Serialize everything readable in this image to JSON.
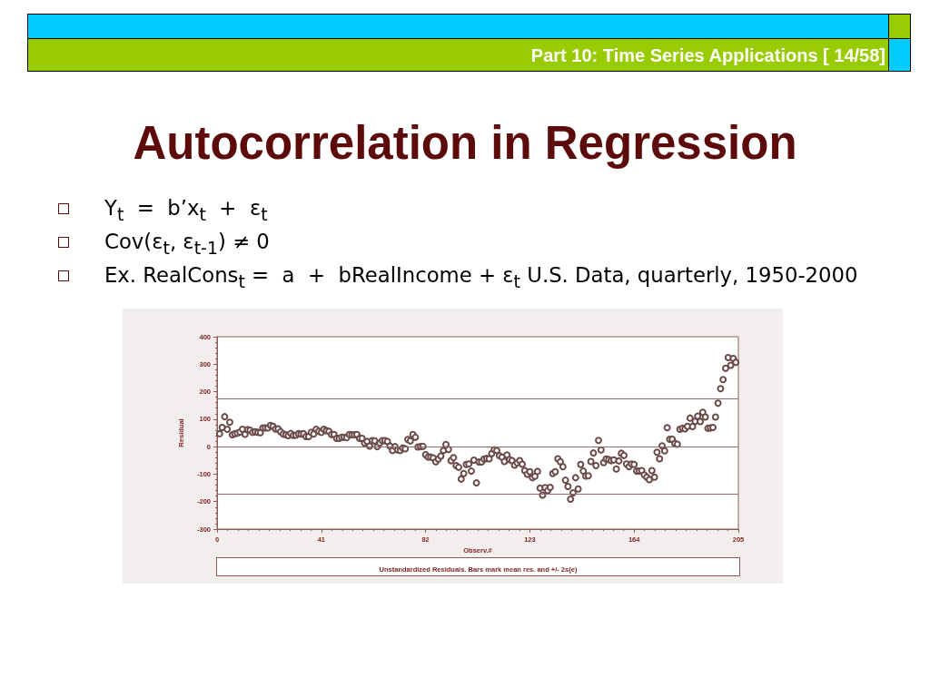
{
  "chart_data": {
    "type": "scatter",
    "title": "Autocorrelation in Regression",
    "subtitle": "Part 10: Time Series Applications [ 14/58]",
    "annotations": [
      "Y$_{t}$  =  b’x$_{t}$  +  ε$_{t}$",
      "Cov(ε$_{t}$, ε$_{t-1}$) ≠ 0",
      "Ex. RealCons$_{t}$ =  a  +  bRealIncome + ε$_{t}$ U.S. Data, quarterly, 1950-2000",
      "Unstandardized Residuals. Bars mark mean res. and +/- 2s(e)"
    ],
    "xlabel": "Observ.#",
    "ylabel": "Residual",
    "x": [
      1,
      2,
      3,
      4,
      5,
      6,
      7,
      8,
      9,
      10,
      11,
      12,
      13,
      14,
      15,
      16,
      17,
      18,
      19,
      20,
      21,
      22,
      23,
      24,
      25,
      26,
      27,
      28,
      29,
      30,
      31,
      32,
      33,
      34,
      35,
      36,
      37,
      38,
      39,
      40,
      41,
      42,
      43,
      44,
      45,
      46,
      47,
      48,
      49,
      50,
      51,
      52,
      53,
      54,
      55,
      56,
      57,
      58,
      59,
      60,
      61,
      62,
      63,
      64,
      65,
      66,
      67,
      68,
      69,
      70,
      71,
      72,
      73,
      74,
      75,
      76,
      77,
      78,
      79,
      80,
      81,
      82,
      83,
      84,
      85,
      86,
      87,
      88,
      89,
      90,
      91,
      92,
      93,
      94,
      95,
      96,
      97,
      98,
      99,
      100,
      101,
      102,
      103,
      104,
      105,
      106,
      107,
      108,
      109,
      110,
      111,
      112,
      113,
      114,
      115,
      116,
      117,
      118,
      119,
      120,
      121,
      122,
      123,
      124,
      125,
      126,
      127,
      128,
      129,
      130,
      131,
      132,
      133,
      134,
      135,
      136,
      137,
      138,
      139,
      140,
      141,
      142,
      143,
      144,
      145,
      146,
      147,
      148,
      149,
      150,
      151,
      152,
      153,
      154,
      155,
      156,
      157,
      158,
      159,
      160,
      161,
      162,
      163,
      164,
      165,
      166,
      167,
      168,
      169,
      170,
      171,
      172,
      173,
      174,
      175,
      176,
      177,
      178,
      179,
      180,
      181,
      182,
      183,
      184,
      185,
      186,
      187,
      188,
      189,
      190,
      191,
      192,
      193,
      194,
      195,
      196,
      197,
      198,
      199,
      200,
      201,
      202,
      203,
      204
    ],
    "values": [
      47,
      70,
      109,
      63,
      89,
      43,
      47,
      49,
      53,
      63,
      45,
      62,
      60,
      52,
      54,
      52,
      51,
      68,
      68,
      68,
      77,
      74,
      64,
      65,
      54,
      46,
      43,
      40,
      48,
      41,
      42,
      47,
      46,
      47,
      37,
      37,
      52,
      46,
      63,
      56,
      52,
      63,
      58,
      56,
      44,
      44,
      30,
      30,
      34,
      34,
      33,
      44,
      43,
      43,
      44,
      30,
      30,
      13,
      19,
      2,
      22,
      21,
      0,
      13,
      22,
      22,
      19,
      2,
      -14,
      0,
      -12,
      -14,
      -5,
      -8,
      26,
      21,
      44,
      34,
      -1,
      0,
      1,
      -29,
      -38,
      -38,
      -41,
      -55,
      -45,
      -34,
      -14,
      8,
      -10,
      -51,
      -40,
      -69,
      -75,
      -118,
      -98,
      -65,
      -63,
      -89,
      -49,
      -132,
      -56,
      -56,
      -45,
      -43,
      -44,
      -25,
      -11,
      -14,
      -33,
      -38,
      -54,
      -30,
      -47,
      -51,
      -67,
      -59,
      -51,
      -64,
      -87,
      -100,
      -91,
      -113,
      -108,
      -90,
      -151,
      -176,
      -149,
      -160,
      -148,
      -98,
      -91,
      -44,
      -55,
      -73,
      -122,
      -145,
      -191,
      -168,
      -113,
      -154,
      -65,
      -89,
      -107,
      -106,
      -54,
      -23,
      -69,
      23,
      -12,
      -58,
      -45,
      -47,
      -51,
      -48,
      -81,
      -52,
      -24,
      -32,
      -63,
      -73,
      -63,
      -65,
      -89,
      -89,
      -87,
      -103,
      -111,
      -120,
      -87,
      -111,
      -20,
      -44,
      3,
      -15,
      69,
      27,
      27,
      12,
      9,
      63,
      67,
      65,
      74,
      104,
      73,
      92,
      111,
      91,
      125,
      108,
      67,
      68,
      70,
      108,
      158,
      211,
      244,
      285,
      324,
      296,
      321,
      307
    ],
    "color": "#6b4a4a",
    "marker": "circle",
    "xlim": [
      0,
      205
    ],
    "xticks": [
      0,
      41,
      82,
      123,
      164,
      205
    ],
    "ylim": [
      -300,
      400
    ],
    "yticks": [
      -300,
      -200,
      -100,
      0,
      100,
      200,
      300,
      400
    ],
    "ref_lines": [
      {
        "axis": "y",
        "value": 173,
        "color": "#8f6a6a"
      },
      {
        "axis": "y",
        "value": 0,
        "color": "#8f6a6a"
      },
      {
        "axis": "y",
        "value": -173,
        "color": "#8f6a6a"
      }
    ],
    "grid": false
  }
}
